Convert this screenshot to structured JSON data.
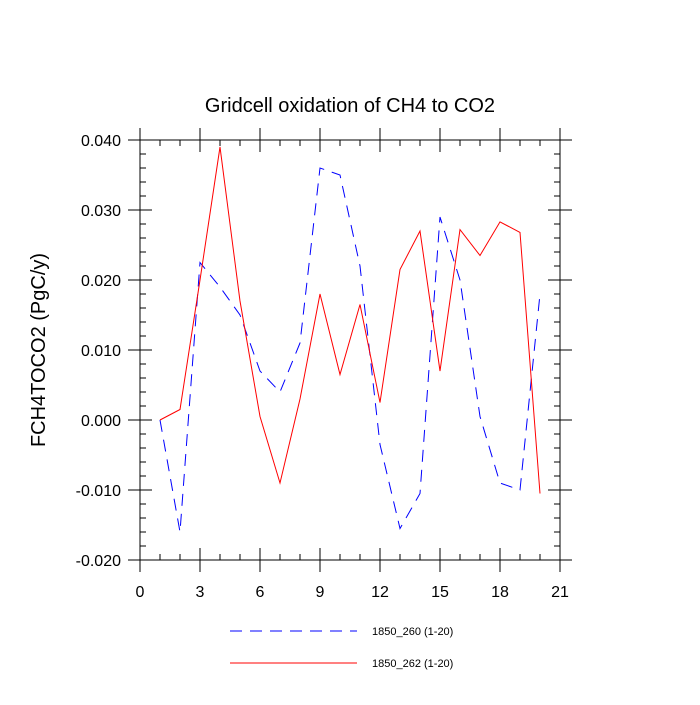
{
  "chart_data": {
    "type": "line",
    "title": "Gridcell oxidation of CH4 to CO2",
    "xlabel": "",
    "ylabel": "FCH4TOCO2  (PgC/y)",
    "xlim": [
      0,
      21
    ],
    "ylim": [
      -0.02,
      0.04
    ],
    "xticks": [
      0,
      3,
      6,
      9,
      12,
      15,
      18,
      21
    ],
    "xtick_labels": [
      "0",
      "3",
      "6",
      "9",
      "12",
      "15",
      "18",
      "21"
    ],
    "yticks": [
      -0.02,
      -0.01,
      0.0,
      0.01,
      0.02,
      0.03,
      0.04
    ],
    "ytick_labels": [
      "-0.020",
      "-0.010",
      "0.000",
      "0.010",
      "0.020",
      "0.030",
      "0.040"
    ],
    "x_minor_step": 1,
    "y_minor_step": 0.002,
    "grid": false,
    "legend_position": "bottom",
    "series": [
      {
        "name": "1850_260 (1-20)",
        "color": "#0000ff",
        "style": "dashed",
        "x": [
          1,
          2,
          3,
          4,
          5,
          6,
          7,
          8,
          9,
          10,
          11,
          12,
          13,
          14,
          15,
          16,
          17,
          18,
          19,
          20
        ],
        "values": [
          0.0,
          -0.016,
          0.0225,
          0.019,
          0.015,
          0.007,
          0.004,
          0.011,
          0.036,
          0.035,
          0.022,
          -0.0035,
          -0.0155,
          -0.0105,
          0.029,
          0.02,
          0.0005,
          -0.009,
          -0.01,
          0.018
        ]
      },
      {
        "name": "1850_262 (1-20)",
        "color": "#ff0000",
        "style": "solid",
        "x": [
          1,
          2,
          3,
          4,
          5,
          6,
          7,
          8,
          9,
          10,
          11,
          12,
          13,
          14,
          15,
          16,
          17,
          18,
          19,
          20
        ],
        "values": [
          0.0,
          0.0015,
          0.02,
          0.039,
          0.017,
          0.0005,
          -0.009,
          0.003,
          0.018,
          0.0065,
          0.0165,
          0.0025,
          0.0215,
          0.027,
          0.007,
          0.0272,
          0.0235,
          0.0283,
          0.0268,
          -0.0105
        ]
      }
    ]
  }
}
